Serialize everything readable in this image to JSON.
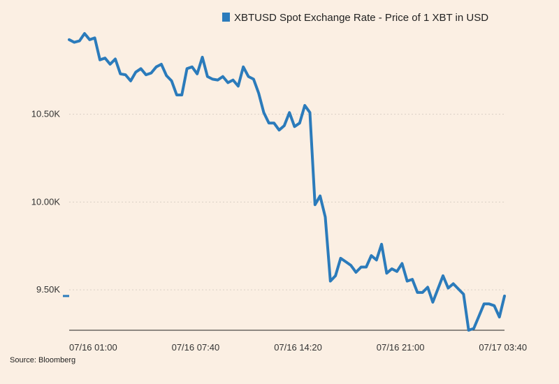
{
  "chart_data": {
    "type": "line",
    "title": "",
    "xlabel": "",
    "ylabel": "",
    "legend_position": "top-right",
    "grid": true,
    "grid_style": "dotted horizontal",
    "ylim": [
      9270,
      10960
    ],
    "y_ticks": [
      {
        "value": 10500,
        "label": "10.50K"
      },
      {
        "value": 10000,
        "label": "10.00K"
      },
      {
        "value": 9500,
        "label": "9.50K"
      }
    ],
    "x_ticks": [
      {
        "index": 0,
        "label": "07/16 01:00"
      },
      {
        "index": 20,
        "label": "07/16 07:40"
      },
      {
        "index": 40,
        "label": "07/16 14:20"
      },
      {
        "index": 60,
        "label": "07/16 21:00"
      },
      {
        "index": 80,
        "label": "07/17 03:40"
      }
    ],
    "series": [
      {
        "name": "XBTUSD Spot Exchange Rate - Price of 1 XBT in USD",
        "color": "#2b7bbb",
        "values": [
          10925,
          10910,
          10918,
          10960,
          10925,
          10935,
          10810,
          10820,
          10785,
          10815,
          10730,
          10725,
          10690,
          10740,
          10760,
          10725,
          10735,
          10770,
          10785,
          10720,
          10690,
          10610,
          10610,
          10760,
          10770,
          10730,
          10825,
          10715,
          10700,
          10695,
          10715,
          10680,
          10695,
          10660,
          10770,
          10715,
          10700,
          10620,
          10510,
          10450,
          10450,
          10410,
          10435,
          10510,
          10430,
          10450,
          10550,
          10510,
          9985,
          10035,
          9915,
          9550,
          9580,
          9680,
          9660,
          9640,
          9600,
          9630,
          9630,
          9695,
          9670,
          9760,
          9595,
          9620,
          9605,
          9650,
          9550,
          9560,
          9485,
          9485,
          9515,
          9430,
          9505,
          9580,
          9510,
          9535,
          9505,
          9475,
          9270,
          9280,
          9350,
          9420,
          9420,
          9410,
          9345,
          9465
        ]
      }
    ],
    "left_marker_value": 9465
  },
  "footer": {
    "source": "Source: Bloomberg"
  }
}
